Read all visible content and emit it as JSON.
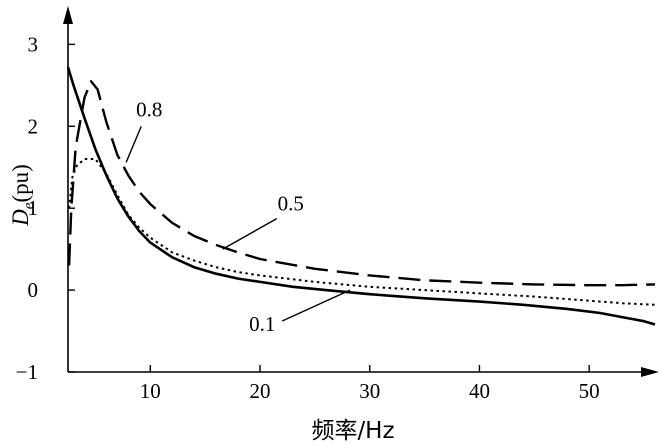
{
  "chart_data": {
    "type": "line",
    "xlabel": "频率/Hz",
    "ylabel_main": "D",
    "ylabel_sub": "e",
    "ylabel_unit": "(pu)",
    "xlim": [
      2.5,
      56
    ],
    "ylim": [
      -1,
      3.2
    ],
    "xticks": [
      10,
      20,
      30,
      40,
      50
    ],
    "yticks": [
      -1,
      0,
      1,
      2,
      3
    ],
    "grid": false,
    "series": [
      {
        "name": "0.1",
        "style": "solid",
        "color": "#000000",
        "x": [
          2.5,
          3,
          4,
          5,
          6,
          7,
          8,
          9,
          10,
          12,
          14,
          16,
          18,
          20,
          23,
          26,
          30,
          35,
          40,
          44,
          48,
          51,
          53,
          55,
          56
        ],
        "y": [
          2.72,
          2.5,
          2.1,
          1.72,
          1.4,
          1.12,
          0.9,
          0.72,
          0.58,
          0.4,
          0.28,
          0.2,
          0.14,
          0.1,
          0.04,
          0.0,
          -0.05,
          -0.1,
          -0.14,
          -0.18,
          -0.23,
          -0.28,
          -0.33,
          -0.38,
          -0.42
        ]
      },
      {
        "name": "0.5",
        "style": "dotted",
        "color": "#000000",
        "x": [
          2.6,
          2.9,
          3.3,
          4,
          5,
          6,
          7,
          8,
          9,
          10,
          12,
          14,
          16,
          18,
          20,
          25,
          30,
          35,
          40,
          45,
          50,
          53,
          56
        ],
        "y": [
          1.0,
          1.38,
          1.52,
          1.6,
          1.6,
          1.42,
          1.16,
          0.92,
          0.76,
          0.64,
          0.46,
          0.36,
          0.28,
          0.22,
          0.18,
          0.1,
          0.04,
          0.0,
          -0.04,
          -0.08,
          -0.13,
          -0.16,
          -0.18
        ]
      },
      {
        "name": "0.8",
        "style": "dashed",
        "color": "#000000",
        "x": [
          2.6,
          2.8,
          3.2,
          3.6,
          4,
          4.6,
          5.2,
          6,
          7,
          8,
          9,
          10,
          12,
          14,
          16,
          18,
          20,
          25,
          30,
          35,
          40,
          45,
          50,
          53,
          56
        ],
        "y": [
          0.3,
          1.0,
          1.75,
          2.05,
          2.35,
          2.55,
          2.45,
          2.05,
          1.65,
          1.4,
          1.2,
          1.05,
          0.82,
          0.66,
          0.55,
          0.46,
          0.38,
          0.26,
          0.18,
          0.12,
          0.09,
          0.07,
          0.06,
          0.06,
          0.07
        ]
      }
    ],
    "annotations": [
      {
        "text": "0.8",
        "x": 9.9,
        "y": 2.12,
        "arrow_to": [
          7.8,
          1.56
        ]
      },
      {
        "text": "0.5",
        "x": 22.8,
        "y": 0.97,
        "arrow_to": [
          16.6,
          0.5
        ]
      },
      {
        "text": "0.1",
        "x": 20.2,
        "y": -0.5,
        "arrow_to": [
          28.2,
          0.0
        ]
      }
    ]
  }
}
